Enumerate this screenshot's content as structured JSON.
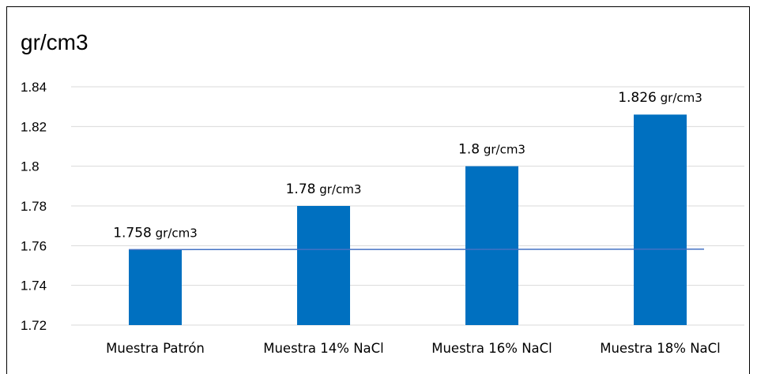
{
  "chart_data": {
    "type": "bar",
    "title": "gr/cm3",
    "categories": [
      "Muestra Patrón",
      "Muestra 14% NaCl",
      "Muestra 16% NaCl",
      "Muestra 18% NaCl"
    ],
    "series": [
      {
        "values": [
          1.758,
          1.78,
          1.8,
          1.826
        ],
        "color": "#0070C0"
      }
    ],
    "data_labels": [
      {
        "value": "1.758",
        "unit": "gr/cm3"
      },
      {
        "value": "1.78",
        "unit": "gr/cm3"
      },
      {
        "value": "1.8",
        "unit": "gr/cm3"
      },
      {
        "value": "1.826",
        "unit": "gr/cm3"
      }
    ],
    "reference_line": {
      "value": 1.758,
      "color": "#4472C4"
    },
    "yticks": [
      "1.72",
      "1.74",
      "1.76",
      "1.78",
      "1.8",
      "1.82",
      "1.84"
    ],
    "ylim": [
      1.72,
      1.84
    ],
    "grid": true
  }
}
